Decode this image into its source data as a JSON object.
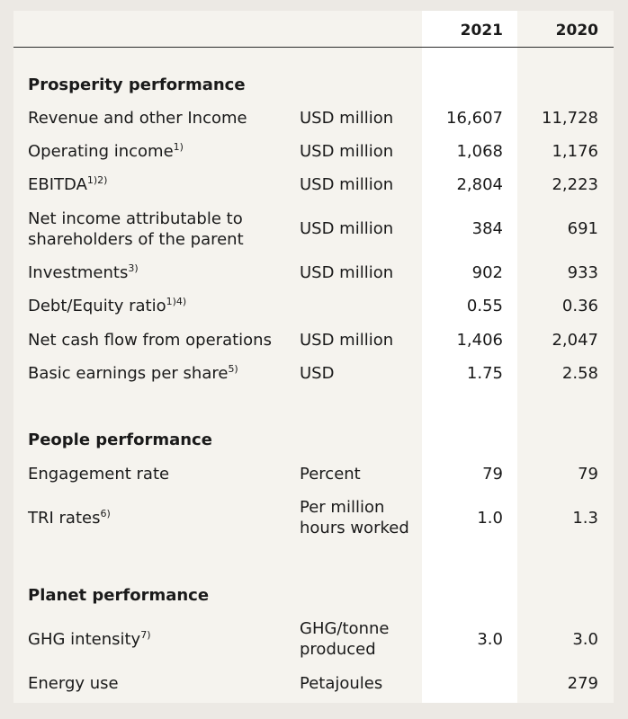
{
  "header": {
    "year1": "2021",
    "year2": "2020"
  },
  "sections": {
    "prosperity": {
      "title": "Prosperity performance",
      "rows": [
        {
          "label": "Revenue and other Income",
          "sup": "",
          "unit": "USD million",
          "v1": "16,607",
          "v2": "11,728"
        },
        {
          "label": "Operating income",
          "sup": "1)",
          "unit": "USD million",
          "v1": "1,068",
          "v2": "1,176"
        },
        {
          "label": "EBITDA",
          "sup": "1)2)",
          "unit": "USD million",
          "v1": "2,804",
          "v2": "2,223"
        },
        {
          "label_line1": "Net income attributable to",
          "label_line2": "shareholders of the parent",
          "unit": "USD million",
          "v1": "384",
          "v2": "691"
        },
        {
          "label": "Investments",
          "sup": "3)",
          "unit": "USD million",
          "v1": "902",
          "v2": "933"
        },
        {
          "label": "Debt/Equity ratio",
          "sup": "1)4)",
          "unit": "",
          "v1": "0.55",
          "v2": "0.36"
        },
        {
          "label": "Net cash flow from operations",
          "sup": "",
          "unit": "USD million",
          "v1": "1,406",
          "v2": "2,047"
        },
        {
          "label": "Basic earnings per share",
          "sup": "5)",
          "unit": "USD",
          "v1": "1.75",
          "v2": "2.58"
        }
      ]
    },
    "people": {
      "title": "People performance",
      "rows": [
        {
          "label": "Engagement rate",
          "sup": "",
          "unit": "Percent",
          "v1": "79",
          "v2": "79"
        },
        {
          "label": "TRI rates",
          "sup": "6)",
          "unit_line1": "Per million",
          "unit_line2": "hours worked",
          "v1": "1.0",
          "v2": "1.3"
        }
      ]
    },
    "planet": {
      "title": "Planet performance",
      "rows": [
        {
          "label": "GHG intensity",
          "sup": "7)",
          "unit_line1": "GHG/tonne",
          "unit_line2": "produced",
          "v1": "3.0",
          "v2": "3.0"
        },
        {
          "label": "Energy use",
          "sup": "",
          "unit": "Petajoules",
          "v1": "",
          "v2": "279"
        }
      ]
    }
  }
}
